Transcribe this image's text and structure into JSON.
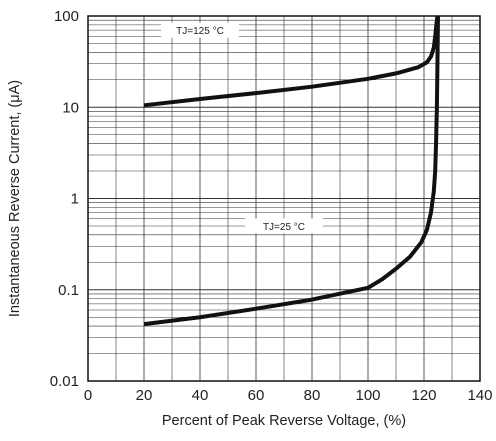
{
  "chart_data": {
    "type": "line",
    "title": "",
    "xlabel": "Percent of Peak Reverse Voltage, (%)",
    "ylabel": "Instantaneous Reverse Current, (μA)",
    "xlim": [
      0,
      140
    ],
    "ylim": [
      0.01,
      100
    ],
    "yscale": "log",
    "grid": true,
    "x_ticks": [
      0,
      20,
      40,
      60,
      80,
      100,
      120,
      140
    ],
    "x_tick_labels": [
      "0",
      "20",
      "40",
      "60",
      "80",
      "100",
      "120",
      "140"
    ],
    "y_ticks": [
      0.01,
      0.1,
      1,
      10,
      100
    ],
    "y_tick_labels": [
      "0.01",
      "0.1",
      "1",
      "10",
      "100"
    ],
    "series": [
      {
        "points": [
          [
            20,
            10.5
          ],
          [
            40,
            12.3
          ],
          [
            60,
            14.3
          ],
          [
            80,
            16.8
          ],
          [
            100,
            20.5
          ],
          [
            110,
            23.5
          ],
          [
            118,
            27.5
          ],
          [
            121,
            31
          ],
          [
            122.5,
            36
          ],
          [
            123.5,
            45
          ],
          [
            124,
            60
          ],
          [
            124.5,
            85
          ],
          [
            124.8,
            100
          ]
        ]
      },
      {
        "points": [
          [
            20,
            0.042
          ],
          [
            40,
            0.05
          ],
          [
            60,
            0.062
          ],
          [
            80,
            0.078
          ],
          [
            100,
            0.105
          ],
          [
            105,
            0.13
          ],
          [
            110,
            0.17
          ],
          [
            115,
            0.23
          ],
          [
            119,
            0.33
          ],
          [
            121,
            0.45
          ],
          [
            122.5,
            0.7
          ],
          [
            123.5,
            1.2
          ],
          [
            124,
            2
          ],
          [
            124.3,
            4
          ],
          [
            124.6,
            10
          ],
          [
            124.8,
            30
          ],
          [
            125,
            100
          ]
        ]
      }
    ],
    "annotations": [
      {
        "text": "TJ=125 °C",
        "x": 40,
        "y": 70
      },
      {
        "text": "TJ=25 °C",
        "x": 70,
        "y": 0.5
      }
    ]
  }
}
